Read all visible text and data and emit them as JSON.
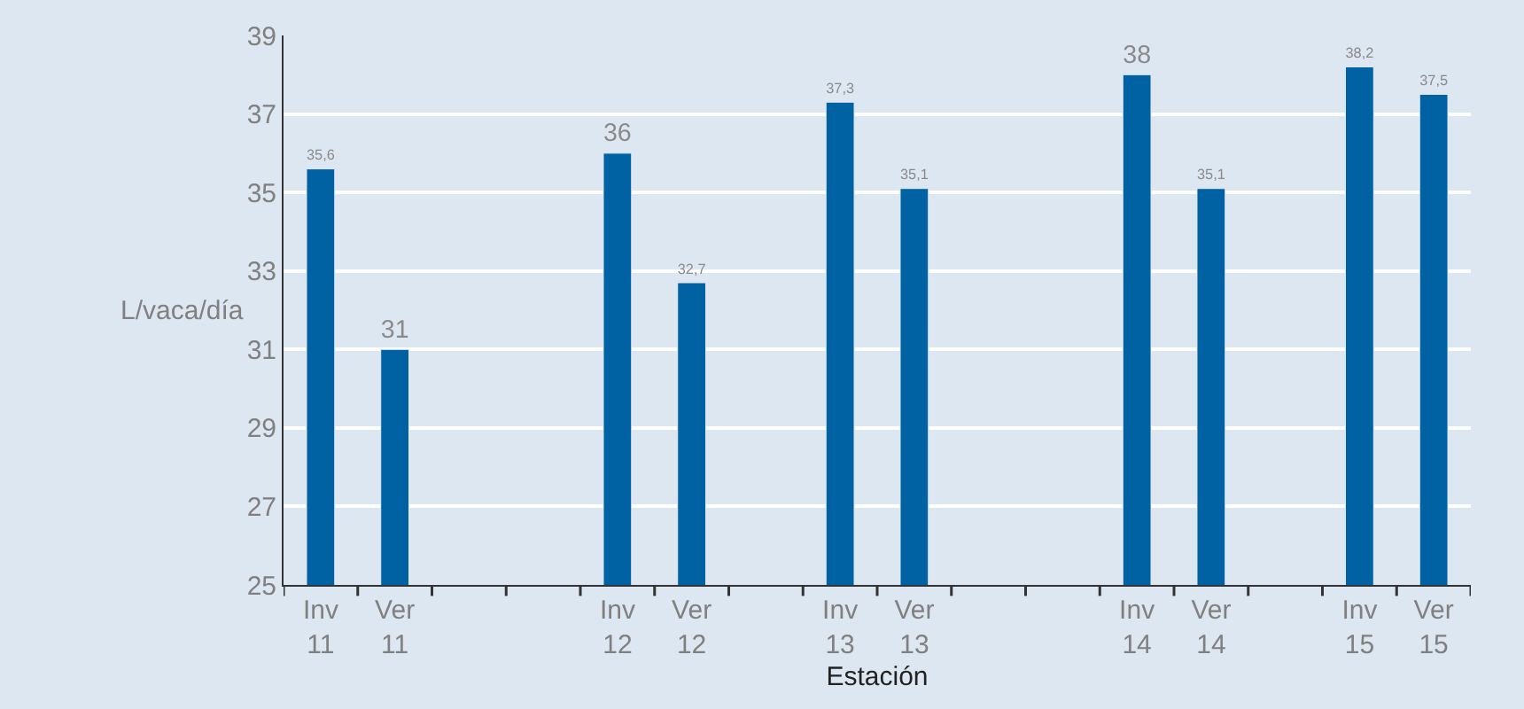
{
  "chart_data": {
    "type": "bar",
    "xlabel": "Estación",
    "ylabel": "L/vaca/día",
    "categories": [
      "Inv\n11",
      "Ver\n11",
      null,
      null,
      "Inv\n12",
      "Ver\n12",
      null,
      "Inv\n13",
      "Ver\n13",
      null,
      null,
      "Inv\n14",
      "Ver\n14",
      null,
      "Inv\n15",
      "Ver\n15"
    ],
    "values": [
      35.6,
      31,
      null,
      null,
      36,
      32.7,
      null,
      37.3,
      35.1,
      null,
      null,
      38,
      35.1,
      null,
      38.2,
      37.5
    ],
    "value_labels": [
      "35,6",
      "31",
      null,
      null,
      "36",
      "32,7",
      null,
      "37,3",
      "35,1",
      null,
      null,
      "38",
      "35,1",
      null,
      "38,2",
      "37,5"
    ],
    "color": "#0062a3",
    "ylim": [
      25,
      39
    ],
    "yticks": [
      25,
      27,
      29,
      31,
      33,
      35,
      37,
      39
    ],
    "grid": "y"
  }
}
